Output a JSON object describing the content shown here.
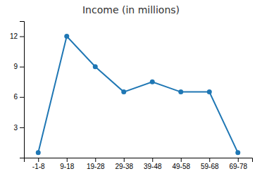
{
  "chart_data": {
    "type": "line",
    "title": "Income (in millions)",
    "categories": [
      "-1-8",
      "9-18",
      "19-28",
      "29-38",
      "39-48",
      "49-58",
      "59-68",
      "69-78"
    ],
    "values": [
      0.5,
      12.0,
      9.0,
      6.5,
      7.5,
      6.5,
      6.5,
      0.5
    ],
    "ylim": [
      0,
      13.5
    ],
    "yticks": [
      3,
      6,
      9,
      12
    ],
    "marker": "circle",
    "grid": false
  }
}
